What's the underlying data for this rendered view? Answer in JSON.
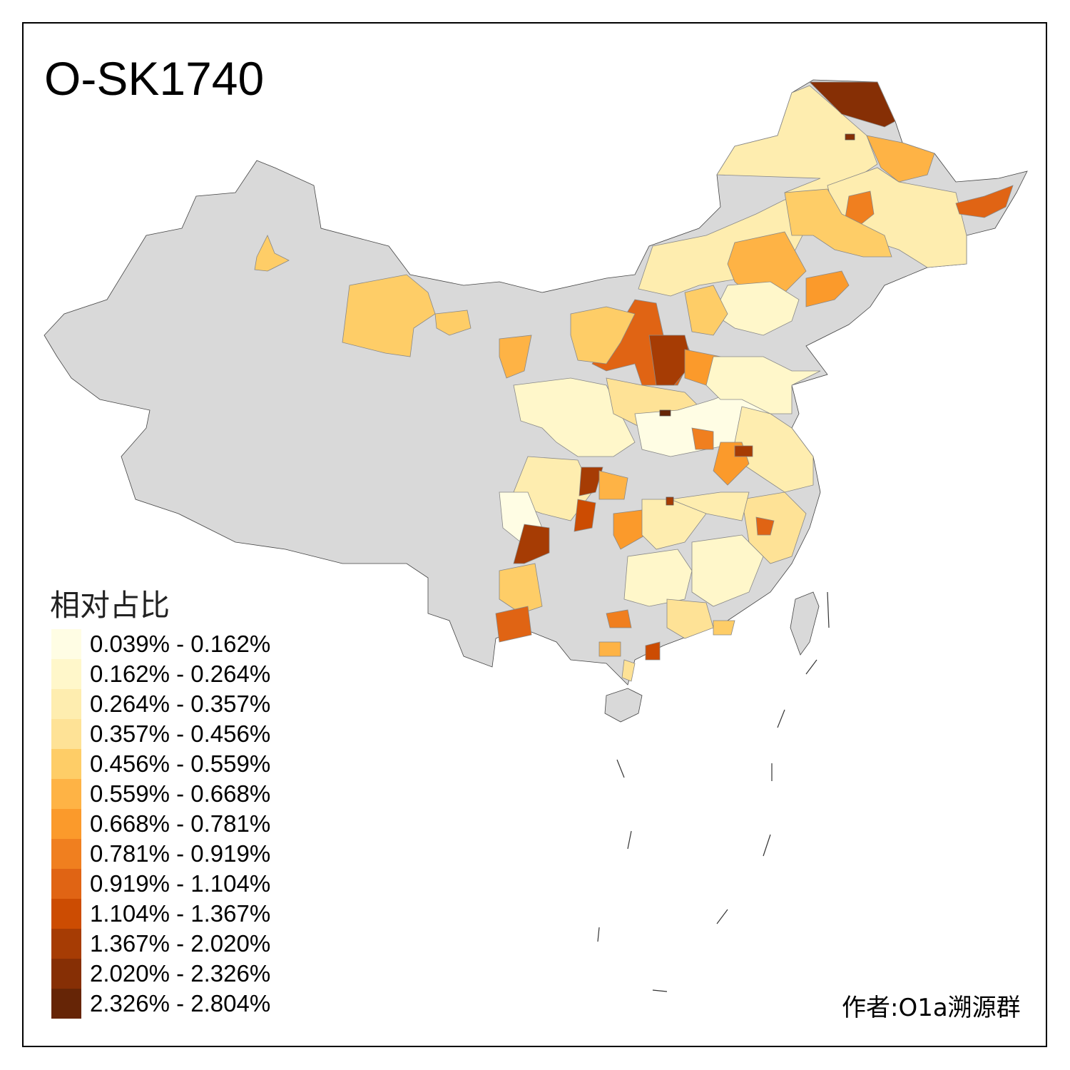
{
  "title": "O-SK1740",
  "legend": {
    "title": "相对占比",
    "classes": [
      {
        "label": "0.039% - 0.162%",
        "color": "#FFFDE4"
      },
      {
        "label": "0.162% - 0.264%",
        "color": "#FFF7CA"
      },
      {
        "label": "0.264% - 0.357%",
        "color": "#FEEDAF"
      },
      {
        "label": "0.357% - 0.456%",
        "color": "#FEE296"
      },
      {
        "label": "0.456% - 0.559%",
        "color": "#FECD67"
      },
      {
        "label": "0.559% - 0.668%",
        "color": "#FEB345"
      },
      {
        "label": "0.668% - 0.781%",
        "color": "#FB9A2B"
      },
      {
        "label": "0.781% - 0.919%",
        "color": "#F07F1F"
      },
      {
        "label": "0.919% - 1.104%",
        "color": "#E06414"
      },
      {
        "label": "1.104% - 1.367%",
        "color": "#CC4C02"
      },
      {
        "label": "1.367% - 2.020%",
        "color": "#A63C04"
      },
      {
        "label": "2.020% - 2.326%",
        "color": "#862F05"
      },
      {
        "label": "2.326% - 2.804%",
        "color": "#662506"
      }
    ]
  },
  "no_data_color": "#D9D9D9",
  "author": "作者:O1a溯源群"
}
